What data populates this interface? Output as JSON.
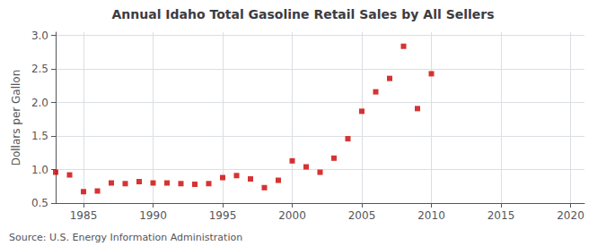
{
  "chart_data": {
    "type": "scatter",
    "title": "Annual Idaho Total Gasoline Retail Sales by All Sellers",
    "ylabel": "Dollars per Gallon",
    "annotations": [
      "Source: U.S. Energy Information Administration"
    ],
    "x": [
      1983,
      1984,
      1985,
      1986,
      1987,
      1988,
      1989,
      1990,
      1991,
      1992,
      1993,
      1994,
      1995,
      1996,
      1997,
      1998,
      1999,
      2000,
      2001,
      2002,
      2003,
      2004,
      2005,
      2006,
      2007,
      2008,
      2009,
      2010
    ],
    "values": [
      0.96,
      0.92,
      0.67,
      0.68,
      0.8,
      0.79,
      0.82,
      0.8,
      0.8,
      0.79,
      0.78,
      0.79,
      0.88,
      0.91,
      0.86,
      0.73,
      0.84,
      1.13,
      1.04,
      0.96,
      1.17,
      1.46,
      1.87,
      2.16,
      2.36,
      2.84,
      1.91,
      2.43
    ],
    "color": "#cc0000",
    "marker": "square",
    "xlim": [
      1983,
      2021
    ],
    "xticks": [
      1985,
      1990,
      1995,
      2000,
      2005,
      2010,
      2015,
      2020
    ],
    "ylim": [
      0.5,
      3.05
    ],
    "yticks": [
      0.5,
      {
        "value": 1,
        "label": "1.0"
      },
      1.5,
      {
        "value": 2,
        "label": "2.0"
      },
      2.5,
      {
        "value": 3,
        "label": "3.0"
      }
    ],
    "grid": true
  }
}
